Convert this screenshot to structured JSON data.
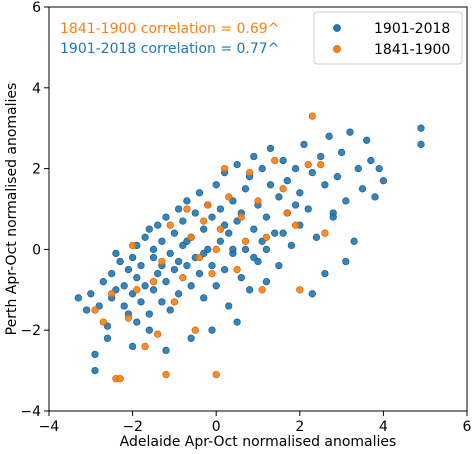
{
  "chart_data": {
    "type": "scatter",
    "xlabel": "Adelaide Apr-Oct normalised anomalies",
    "ylabel": "Perth Apr-Oct normalised anomalies",
    "xlim": [
      -4,
      6
    ],
    "ylim": [
      -4,
      6
    ],
    "xticks": [
      -4,
      -2,
      0,
      2,
      4,
      6
    ],
    "yticks": [
      -4,
      -2,
      0,
      2,
      4,
      6
    ],
    "tick_labels": {
      "x": [
        "−4",
        "−2",
        "0",
        "2",
        "4",
        "6"
      ],
      "y": [
        "−4",
        "−2",
        "0",
        "2",
        "4",
        "6"
      ]
    },
    "grid": false,
    "legend_placement": "top-right",
    "annotations": [
      {
        "text": "1841-1900 correlation = 0.69^",
        "color": "#ff7f0e"
      },
      {
        "text": "1901-2018 correlation = 0.77^",
        "color": "#1f77b4"
      }
    ],
    "series": [
      {
        "name": "1901-2018",
        "color": "#1f77b4",
        "points": [
          [
            -3.3,
            -1.2
          ],
          [
            -3.1,
            -1.5
          ],
          [
            -3.0,
            -1.1
          ],
          [
            -2.8,
            -1.4
          ],
          [
            -2.7,
            -0.8
          ],
          [
            -2.6,
            -1.9
          ],
          [
            -2.5,
            -1.2
          ],
          [
            -2.5,
            -0.6
          ],
          [
            -2.4,
            -1.0
          ],
          [
            -2.3,
            -0.3
          ],
          [
            -2.2,
            -1.4
          ],
          [
            -2.2,
            -0.9
          ],
          [
            -2.1,
            -0.5
          ],
          [
            -2.1,
            -1.6
          ],
          [
            -2.0,
            -0.2
          ],
          [
            -2.0,
            -1.1
          ],
          [
            -1.9,
            -0.7
          ],
          [
            -1.9,
            0.1
          ],
          [
            -1.8,
            -1.3
          ],
          [
            -1.8,
            -0.4
          ],
          [
            -1.7,
            0.3
          ],
          [
            -1.7,
            -0.9
          ],
          [
            -1.6,
            -1.6
          ],
          [
            -1.6,
            0.5
          ],
          [
            -1.5,
            -0.2
          ],
          [
            -1.5,
            -1.0
          ],
          [
            -1.4,
            0.6
          ],
          [
            -1.4,
            -0.6
          ],
          [
            -1.3,
            -1.3
          ],
          [
            -1.3,
            0.2
          ],
          [
            -1.2,
            -0.8
          ],
          [
            -1.2,
            0.8
          ],
          [
            -1.1,
            -0.1
          ],
          [
            -1.1,
            -1.5
          ],
          [
            -1.0,
            0.4
          ],
          [
            -1.0,
            -0.5
          ],
          [
            -0.9,
            1.0
          ],
          [
            -0.9,
            -1.1
          ],
          [
            -0.8,
            0.1
          ],
          [
            -0.8,
            0.7
          ],
          [
            -0.7,
            -0.4
          ],
          [
            -0.7,
            1.2
          ],
          [
            -0.6,
            -0.9
          ],
          [
            -0.6,
            0.3
          ],
          [
            -0.5,
            0.9
          ],
          [
            -0.5,
            -0.2
          ],
          [
            -0.4,
            1.4
          ],
          [
            -0.4,
            -0.6
          ],
          [
            -0.3,
            0.5
          ],
          [
            -0.3,
            -1.2
          ],
          [
            -0.2,
            0.0
          ],
          [
            -0.2,
            1.1
          ],
          [
            -0.1,
            -0.4
          ],
          [
            -0.1,
            0.8
          ],
          [
            0.0,
            1.6
          ],
          [
            0.0,
            -0.9
          ],
          [
            0.1,
            0.2
          ],
          [
            0.1,
            1.0
          ],
          [
            0.2,
            -0.5
          ],
          [
            0.2,
            1.9
          ],
          [
            0.3,
            0.4
          ],
          [
            0.3,
            -1.4
          ],
          [
            0.4,
            1.2
          ],
          [
            0.4,
            -0.1
          ],
          [
            0.5,
            0.7
          ],
          [
            0.5,
            2.1
          ],
          [
            0.6,
            -0.7
          ],
          [
            0.6,
            0.9
          ],
          [
            0.7,
            1.5
          ],
          [
            0.7,
            0.0
          ],
          [
            0.8,
            -1.0
          ],
          [
            0.8,
            1.8
          ],
          [
            0.9,
            0.5
          ],
          [
            0.9,
            2.3
          ],
          [
            1.0,
            -0.3
          ],
          [
            1.0,
            1.1
          ],
          [
            1.1,
            0.2
          ],
          [
            1.1,
            2.0
          ],
          [
            1.2,
            0.8
          ],
          [
            1.2,
            -0.8
          ],
          [
            1.3,
            1.6
          ],
          [
            1.3,
            2.5
          ],
          [
            1.4,
            0.4
          ],
          [
            1.5,
            1.3
          ],
          [
            1.5,
            -0.4
          ],
          [
            1.6,
            2.2
          ],
          [
            1.7,
            0.9
          ],
          [
            1.7,
            1.7
          ],
          [
            1.8,
            0.1
          ],
          [
            1.9,
            2.0
          ],
          [
            2.0,
            1.4
          ],
          [
            2.0,
            0.6
          ],
          [
            2.1,
            2.6
          ],
          [
            2.2,
            1.0
          ],
          [
            2.3,
            1.9
          ],
          [
            2.4,
            0.3
          ],
          [
            2.5,
            2.3
          ],
          [
            2.6,
            1.6
          ],
          [
            2.7,
            2.8
          ],
          [
            2.8,
            0.9
          ],
          [
            2.9,
            1.8
          ],
          [
            3.0,
            2.4
          ],
          [
            3.1,
            1.2
          ],
          [
            3.2,
            2.9
          ],
          [
            3.3,
            0.2
          ],
          [
            3.4,
            2.0
          ],
          [
            3.5,
            1.5
          ],
          [
            3.6,
            2.7
          ],
          [
            3.7,
            2.2
          ],
          [
            3.8,
            1.3
          ],
          [
            3.9,
            2.0
          ],
          [
            4.0,
            1.7
          ],
          [
            4.9,
            3.0
          ],
          [
            4.9,
            2.6
          ],
          [
            -2.9,
            -2.6
          ],
          [
            -2.9,
            -3.0
          ],
          [
            -2.0,
            -2.4
          ],
          [
            -1.6,
            -2.0
          ],
          [
            -1.2,
            -2.5
          ],
          [
            -0.6,
            -2.2
          ],
          [
            -0.1,
            -2.0
          ],
          [
            0.5,
            -1.8
          ],
          [
            -1.5,
            0.0
          ],
          [
            -0.3,
            -0.1
          ],
          [
            0.4,
            0.0
          ],
          [
            -0.9,
            -0.3
          ],
          [
            1.2,
            0.0
          ],
          [
            2.6,
            -0.6
          ],
          [
            2.3,
            -1.1
          ],
          [
            -2.4,
            -0.1
          ],
          [
            -1.3,
            -0.4
          ],
          [
            0.2,
            0.6
          ],
          [
            1.6,
            0.4
          ],
          [
            2.8,
            0.8
          ],
          [
            3.1,
            -0.3
          ],
          [
            -0.7,
            0.2
          ],
          [
            0.9,
            -0.2
          ],
          [
            1.9,
            1.1
          ],
          [
            -1.9,
            -1.8
          ],
          [
            -2.6,
            -2.2
          ]
        ]
      },
      {
        "name": "1841-1900",
        "color": "#ff7f0e",
        "points": [
          [
            -2.4,
            -3.2
          ],
          [
            -2.3,
            -3.2
          ],
          [
            -1.2,
            -3.1
          ],
          [
            0.0,
            -3.1
          ],
          [
            -2.1,
            -1.7
          ],
          [
            -1.7,
            -2.4
          ],
          [
            -2.7,
            -1.8
          ],
          [
            -2.9,
            -1.5
          ],
          [
            -1.4,
            -2.1
          ],
          [
            -0.5,
            -2.0
          ],
          [
            -1.0,
            -1.3
          ],
          [
            -1.9,
            -1.0
          ],
          [
            -0.8,
            -0.7
          ],
          [
            -1.3,
            -0.3
          ],
          [
            -2.0,
            0.1
          ],
          [
            -0.6,
            0.3
          ],
          [
            -1.1,
            0.6
          ],
          [
            -0.3,
            0.7
          ],
          [
            -0.2,
            1.1
          ],
          [
            0.1,
            0.5
          ],
          [
            0.3,
            1.3
          ],
          [
            -0.4,
            -0.2
          ],
          [
            0.0,
            0.0
          ],
          [
            0.6,
            0.8
          ],
          [
            0.8,
            1.9
          ],
          [
            1.0,
            1.2
          ],
          [
            0.5,
            -0.5
          ],
          [
            1.2,
            0.3
          ],
          [
            1.4,
            2.2
          ],
          [
            1.6,
            1.5
          ],
          [
            2.0,
            -1.0
          ],
          [
            2.2,
            2.1
          ],
          [
            2.3,
            3.3
          ],
          [
            2.5,
            2.1
          ],
          [
            1.7,
            0.9
          ],
          [
            0.2,
            2.0
          ],
          [
            -0.7,
            1.0
          ],
          [
            0.7,
            0.2
          ],
          [
            1.9,
            0.6
          ],
          [
            -1.5,
            -0.8
          ],
          [
            -2.5,
            -1.1
          ],
          [
            -0.1,
            -0.6
          ],
          [
            1.1,
            -1.0
          ],
          [
            2.6,
            0.4
          ]
        ]
      }
    ]
  },
  "colors": {
    "blue": "#1f77b4",
    "orange": "#ff7f0e",
    "marker_edge_blue": "#1a5f91",
    "marker_edge_orange": "#cc650b"
  }
}
